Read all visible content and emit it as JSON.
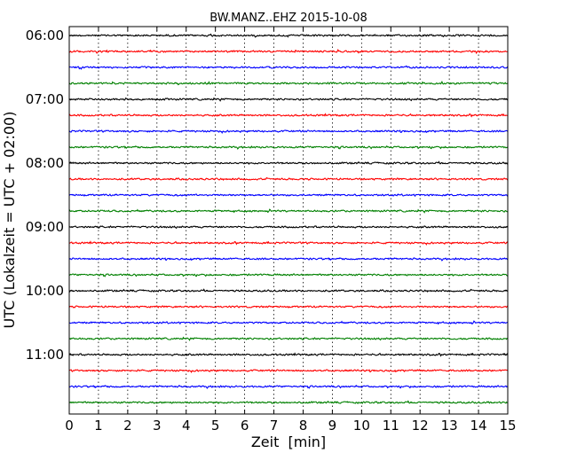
{
  "chart_data": {
    "type": "line",
    "title": "BW.MANZ..EHZ 2015-10-08",
    "xlabel": "Zeit  [min]",
    "ylabel": "UTC (Lokalzeit = UTC + 02:00)",
    "xlim": [
      0,
      15
    ],
    "x_ticks": [
      "0",
      "1",
      "2",
      "3",
      "4",
      "5",
      "6",
      "7",
      "8",
      "9",
      "10",
      "11",
      "12",
      "13",
      "14",
      "15"
    ],
    "y_tick_labels": [
      "06:00",
      "07:00",
      "08:00",
      "09:00",
      "10:00",
      "11:00"
    ],
    "y_tick_positions": [
      0,
      4,
      8,
      12,
      16,
      20
    ],
    "x_grid": true,
    "trace_colors": [
      "#000000",
      "#ff0000",
      "#0000ff",
      "#008000"
    ],
    "traces": [
      {
        "start": "06:00"
      },
      {
        "start": "06:15"
      },
      {
        "start": "06:30"
      },
      {
        "start": "06:45"
      },
      {
        "start": "07:00"
      },
      {
        "start": "07:15"
      },
      {
        "start": "07:30"
      },
      {
        "start": "07:45"
      },
      {
        "start": "08:00"
      },
      {
        "start": "08:15"
      },
      {
        "start": "08:30"
      },
      {
        "start": "08:45"
      },
      {
        "start": "09:00"
      },
      {
        "start": "09:15"
      },
      {
        "start": "09:30"
      },
      {
        "start": "09:45"
      },
      {
        "start": "10:00"
      },
      {
        "start": "10:15"
      },
      {
        "start": "10:30"
      },
      {
        "start": "10:45"
      },
      {
        "start": "11:00"
      },
      {
        "start": "11:15"
      },
      {
        "start": "11:30"
      },
      {
        "start": "11:45"
      }
    ]
  }
}
